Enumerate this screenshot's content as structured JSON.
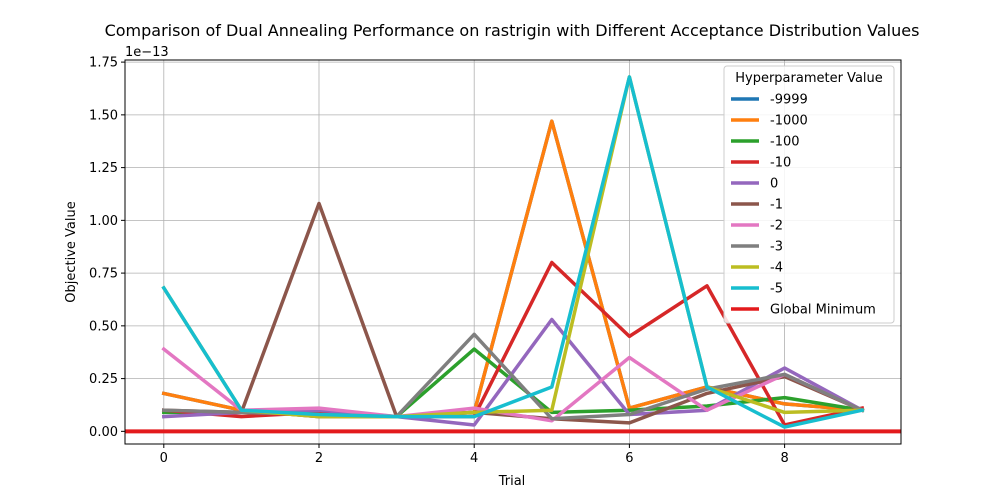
{
  "chart_data": {
    "type": "line",
    "title": "Comparison of Dual Annealing Performance on rastrigin with Different Acceptance Distribution Values",
    "xlabel": "Trial",
    "ylabel": "Objective Value",
    "y_offset_label": "1e−13",
    "xlim": [
      -0.5,
      9.5
    ],
    "ylim": [
      -0.06,
      1.76
    ],
    "x_ticks": [
      0,
      2,
      4,
      6,
      8
    ],
    "x_tick_labels": [
      "0",
      "2",
      "4",
      "6",
      "8"
    ],
    "y_ticks": [
      0,
      0.25,
      0.5,
      0.75,
      1.0,
      1.25,
      1.5,
      1.75
    ],
    "y_tick_labels": [
      "0.00",
      "0.25",
      "0.50",
      "0.75",
      "1.00",
      "1.25",
      "1.50",
      "1.75"
    ],
    "grid": true,
    "legend_title": "Hyperparameter Value",
    "legend_position": "upper right",
    "x": [
      0,
      1,
      2,
      3,
      4,
      5,
      6,
      7,
      8,
      9
    ],
    "series": [
      {
        "name": "-9999",
        "color": "#1f77b4",
        "values": [
          0.18,
          0.1,
          0.07,
          0.07,
          0.09,
          1.47,
          0.11,
          0.21,
          0.13,
          0.1
        ]
      },
      {
        "name": "-1000",
        "color": "#ff7f0e",
        "values": [
          0.18,
          0.1,
          0.07,
          0.07,
          0.09,
          1.47,
          0.11,
          0.21,
          0.13,
          0.1
        ]
      },
      {
        "name": "-100",
        "color": "#2ca02c",
        "values": [
          0.09,
          0.09,
          0.08,
          0.07,
          0.39,
          0.09,
          0.1,
          0.12,
          0.16,
          0.1
        ]
      },
      {
        "name": "-10",
        "color": "#d62728",
        "values": [
          0.1,
          0.07,
          0.09,
          0.07,
          0.07,
          0.8,
          0.45,
          0.69,
          0.03,
          0.11
        ]
      },
      {
        "name": "0",
        "color": "#9467bd",
        "values": [
          0.07,
          0.09,
          0.1,
          0.07,
          0.03,
          0.53,
          0.08,
          0.1,
          0.3,
          0.1
        ]
      },
      {
        "name": "-1",
        "color": "#8c564b",
        "values": [
          0.1,
          0.09,
          1.08,
          0.07,
          0.09,
          0.06,
          0.04,
          0.18,
          0.26,
          0.1
        ]
      },
      {
        "name": "-2",
        "color": "#e377c2",
        "values": [
          0.39,
          0.1,
          0.11,
          0.07,
          0.11,
          0.05,
          0.35,
          0.1,
          0.27,
          0.1
        ]
      },
      {
        "name": "-3",
        "color": "#7f7f7f",
        "values": [
          0.1,
          0.09,
          0.08,
          0.07,
          0.46,
          0.06,
          0.08,
          0.2,
          0.27,
          0.1
        ]
      },
      {
        "name": "-4",
        "color": "#bcbd22",
        "values": [
          0.68,
          0.1,
          0.07,
          0.07,
          0.09,
          0.1,
          1.68,
          0.21,
          0.09,
          0.1
        ]
      },
      {
        "name": "-5",
        "color": "#17becf",
        "values": [
          0.68,
          0.1,
          0.08,
          0.07,
          0.07,
          0.21,
          1.68,
          0.21,
          0.02,
          0.1
        ]
      }
    ],
    "reference_line": {
      "name": "Global Minimum",
      "color": "#e31a1c",
      "value": 0
    }
  }
}
